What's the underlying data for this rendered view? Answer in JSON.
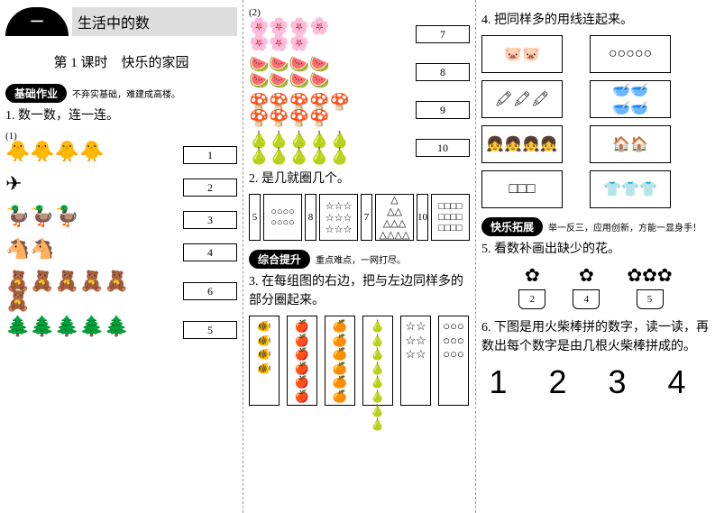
{
  "header": {
    "dash": "一",
    "title": "生活中的数"
  },
  "lesson": "第 1 课时　快乐的家园",
  "sections": {
    "basic": {
      "badge": "基础作业",
      "sub": "不弃实基础，难建成高楼。"
    },
    "comp": {
      "badge": "综合提升",
      "sub": "重点难点，一网打尽。"
    },
    "ext": {
      "badge": "快乐拓展",
      "sub": "举一反三，应用创新，方能一显身手！"
    }
  },
  "q1": {
    "title": "1. 数一数，连一连。",
    "tag1": "(1)",
    "rows1": [
      {
        "pic": "🐥🐥🐥🐥",
        "num": "1"
      },
      {
        "pic": "✈",
        "num": "2"
      },
      {
        "pic": "🦆🦆🦆",
        "num": "3"
      },
      {
        "pic": "🐴🐴",
        "num": "4"
      },
      {
        "pic": "🧸🧸🧸🧸🧸\n🧸",
        "num": "6"
      },
      {
        "pic": "🌲🌲🌲🌲🌲",
        "num": "5"
      }
    ],
    "tag2": "(2)",
    "rows2": [
      {
        "pic": "🌸🌸🌸🌸\n🌸🌸🌸",
        "num": "7"
      },
      {
        "pic": "🍉🍉🍉🍉\n🍉🍉🍉🍉",
        "num": "8"
      },
      {
        "pic": "🍄🍄🍄🍄🍄\n🍄🍄🍄🍄",
        "num": "9"
      },
      {
        "pic": "🍐🍐🍐🍐🍐\n🍐🍐🍐🍐🍐",
        "num": "10"
      }
    ]
  },
  "q2": {
    "title": "2. 是几就圈几个。",
    "cells": [
      {
        "n": "5",
        "c": "○○○○\n○○○○"
      },
      {
        "n": "8",
        "c": "☆☆☆\n☆☆☆\n☆☆☆"
      },
      {
        "n": "7",
        "c": "△\n△△\n△△△\n△△△△"
      },
      {
        "n": "10",
        "c": "□□□□\n□□□□\n□□□□"
      }
    ]
  },
  "q3": {
    "title": "3. 在每组图的右边，把与左边同样多的部分圈起来。",
    "boxes": [
      {
        "l": "🐠🐠\n🐠🐠",
        "r": "🍎🍎\n🍎🍎\n🍎🍎"
      },
      {
        "l": "🍊🍊🍊\n🍊🍊🍊",
        "r": "🍐🍐\n🍐🍐\n🍐🍐\n🍐🍐"
      },
      {
        "l": "☆☆\n☆☆\n☆☆",
        "r": "○○○\n○○○\n○○○"
      }
    ]
  },
  "q4": {
    "title": "4. 把同样多的用线连起来。",
    "left": [
      "🐷🐷",
      "🖍🖍🖍",
      "👧👧👧👧",
      "□□□"
    ],
    "right": [
      "○○○○○",
      "🥣🥣\n🥣🥣",
      "🏠🏠",
      "👕👕👕"
    ]
  },
  "q5": {
    "title": "5. 看数补画出缺少的花。",
    "pots": [
      {
        "f": "✿",
        "n": "2"
      },
      {
        "f": "✿",
        "n": "4"
      },
      {
        "f": "✿✿✿",
        "n": "5"
      }
    ]
  },
  "q6": {
    "title": "6. 下图是用火柴棒拼的数字，读一读，再数出每个数字是由几根火柴棒拼成的。",
    "digits": "1 2 3 4"
  }
}
